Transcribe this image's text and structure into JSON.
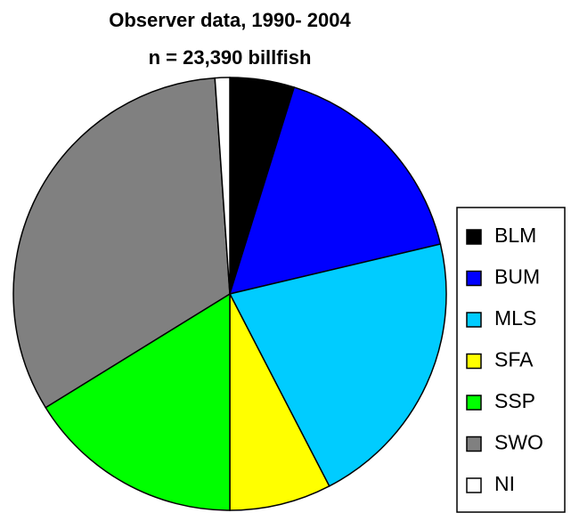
{
  "chart_data": {
    "type": "pie",
    "title": "Observer data, 1990- 2004",
    "subtitle": "n = 23,390 billfish",
    "categories": [
      "BLM",
      "BUM",
      "MLS",
      "SFA",
      "SSP",
      "SWO",
      "NI"
    ],
    "values": [
      4.8,
      16.5,
      21.1,
      7.6,
      16.2,
      32.7,
      1.1
    ],
    "colors": [
      "#000000",
      "#0000ff",
      "#00ccff",
      "#ffff00",
      "#00ff00",
      "#808080",
      "#ffffff"
    ]
  }
}
